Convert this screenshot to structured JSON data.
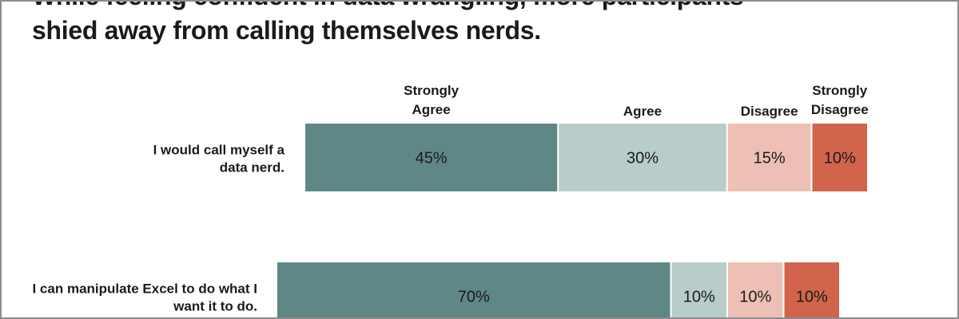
{
  "title": {
    "line1": "While feeling confident in data wrangling, more participants",
    "line2": "shied away from calling themselves nerds."
  },
  "colors": {
    "strongly_agree": "#5f8785",
    "agree": "#b8ccca",
    "disagree": "#eec0b5",
    "strongly_disagree": "#d2644c",
    "text": "#1a1a1a"
  },
  "chart_data": {
    "type": "bar",
    "orientation": "horizontal",
    "stacked": true,
    "unit": "%",
    "legend_placement": "top",
    "categories": [
      "I would call myself a data nerd.",
      "I can manipulate Excel to do what I want it to do."
    ],
    "series": [
      {
        "name": "Strongly Agree",
        "values": [
          45,
          70
        ]
      },
      {
        "name": "Agree",
        "values": [
          30,
          10
        ]
      },
      {
        "name": "Disagree",
        "values": [
          15,
          10
        ]
      },
      {
        "name": "Strongly Disagree",
        "values": [
          10,
          10
        ]
      }
    ]
  }
}
